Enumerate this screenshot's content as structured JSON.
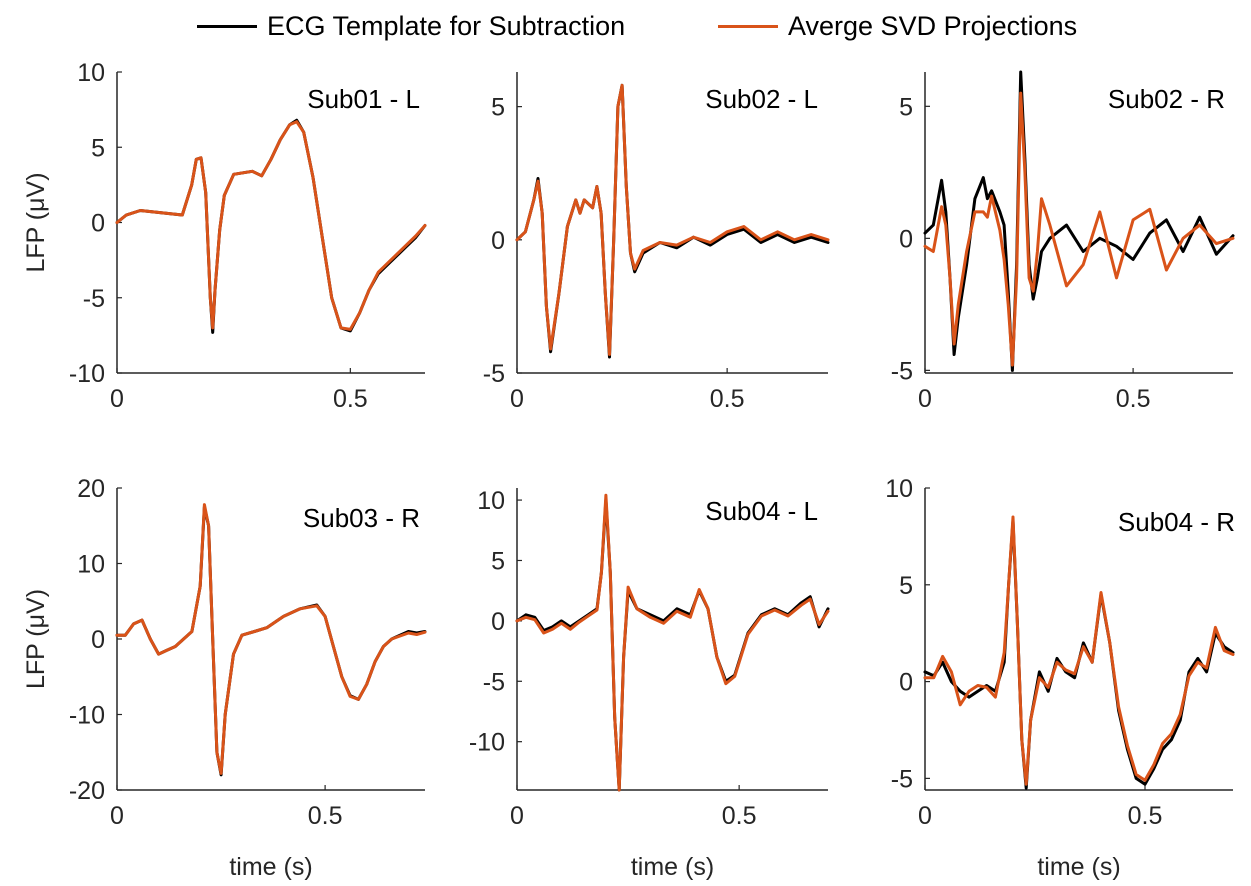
{
  "legend": {
    "items": [
      {
        "label": "ECG Template for Subtraction",
        "color": "#000000"
      },
      {
        "label": "Averge SVD Projections",
        "color": "#d95319"
      }
    ]
  },
  "chart_data": [
    {
      "type": "line",
      "title": "Sub01 - L",
      "xlabel": "",
      "ylabel": "LFP (μV)",
      "xlim": [
        0,
        0.66
      ],
      "ylim": [
        -10,
        10
      ],
      "xticks": [
        0,
        0.5
      ],
      "yticks": [
        -10,
        -5,
        0,
        5,
        10
      ],
      "series": [
        {
          "name": "ECG Template for Subtraction",
          "color": "#000000",
          "x": [
            0,
            0.02,
            0.05,
            0.08,
            0.11,
            0.14,
            0.16,
            0.17,
            0.18,
            0.19,
            0.2,
            0.205,
            0.21,
            0.22,
            0.23,
            0.25,
            0.27,
            0.29,
            0.31,
            0.33,
            0.35,
            0.37,
            0.385,
            0.4,
            0.42,
            0.44,
            0.46,
            0.48,
            0.5,
            0.52,
            0.54,
            0.56,
            0.58,
            0.6,
            0.62,
            0.64,
            0.66
          ],
          "y": [
            0,
            0.5,
            0.8,
            0.7,
            0.6,
            0.5,
            2.5,
            4.2,
            4.3,
            2,
            -5,
            -7.3,
            -4.5,
            -0.5,
            1.8,
            3.2,
            3.3,
            3.4,
            3.1,
            4.2,
            5.5,
            6.5,
            6.8,
            6,
            3,
            -1,
            -5,
            -7,
            -7.2,
            -6,
            -4.5,
            -3.4,
            -2.8,
            -2.2,
            -1.6,
            -1,
            -0.2
          ]
        },
        {
          "name": "Averge SVD Projections",
          "color": "#d95319",
          "x": [
            0,
            0.02,
            0.05,
            0.08,
            0.11,
            0.14,
            0.16,
            0.17,
            0.18,
            0.19,
            0.2,
            0.205,
            0.21,
            0.22,
            0.23,
            0.25,
            0.27,
            0.29,
            0.31,
            0.33,
            0.35,
            0.37,
            0.385,
            0.4,
            0.42,
            0.44,
            0.46,
            0.48,
            0.5,
            0.52,
            0.54,
            0.56,
            0.58,
            0.6,
            0.62,
            0.64,
            0.66
          ],
          "y": [
            0,
            0.5,
            0.8,
            0.7,
            0.6,
            0.5,
            2.5,
            4.2,
            4.3,
            2,
            -5,
            -7,
            -4.5,
            -0.5,
            1.8,
            3.2,
            3.3,
            3.4,
            3.1,
            4.2,
            5.5,
            6.5,
            6.7,
            6,
            3,
            -1,
            -5,
            -7,
            -7.1,
            -6,
            -4.5,
            -3.3,
            -2.7,
            -2.1,
            -1.5,
            -0.9,
            -0.2
          ]
        }
      ]
    },
    {
      "type": "line",
      "title": "Sub02 - L",
      "xlabel": "",
      "ylabel": "",
      "xlim": [
        0,
        0.74
      ],
      "ylim": [
        -5,
        6.3
      ],
      "xticks": [
        0,
        0.5
      ],
      "yticks": [
        -5,
        0,
        5
      ],
      "series": [
        {
          "name": "ECG Template for Subtraction",
          "color": "#000000",
          "x": [
            0,
            0.02,
            0.04,
            0.05,
            0.06,
            0.07,
            0.08,
            0.1,
            0.12,
            0.14,
            0.15,
            0.16,
            0.18,
            0.19,
            0.2,
            0.21,
            0.22,
            0.23,
            0.24,
            0.25,
            0.26,
            0.27,
            0.28,
            0.3,
            0.34,
            0.38,
            0.42,
            0.46,
            0.5,
            0.54,
            0.58,
            0.62,
            0.66,
            0.7,
            0.74
          ],
          "y": [
            0,
            0.3,
            1.5,
            2.3,
            1,
            -2.5,
            -4.2,
            -2,
            0.5,
            1.5,
            1,
            1.5,
            1.2,
            2,
            1,
            -2,
            -4.4,
            0,
            5,
            5.8,
            2,
            -0.5,
            -1.2,
            -0.5,
            -0.1,
            -0.3,
            0.1,
            -0.2,
            0.2,
            0.4,
            -0.1,
            0.2,
            -0.1,
            0.1,
            -0.1
          ]
        },
        {
          "name": "Averge SVD Projections",
          "color": "#d95319",
          "x": [
            0,
            0.02,
            0.04,
            0.05,
            0.06,
            0.07,
            0.08,
            0.1,
            0.12,
            0.14,
            0.15,
            0.16,
            0.18,
            0.19,
            0.2,
            0.21,
            0.22,
            0.23,
            0.24,
            0.25,
            0.26,
            0.27,
            0.28,
            0.3,
            0.34,
            0.38,
            0.42,
            0.46,
            0.5,
            0.54,
            0.58,
            0.62,
            0.66,
            0.7,
            0.74
          ],
          "y": [
            0,
            0.3,
            1.5,
            2.2,
            1,
            -2.5,
            -4.1,
            -2,
            0.5,
            1.5,
            1,
            1.5,
            1.2,
            2,
            1,
            -2,
            -4.3,
            0,
            5,
            5.8,
            2,
            -0.5,
            -1.1,
            -0.4,
            -0.1,
            -0.2,
            0.1,
            -0.1,
            0.3,
            0.5,
            0,
            0.3,
            0,
            0.2,
            0
          ]
        }
      ]
    },
    {
      "type": "line",
      "title": "Sub02 - R",
      "xlabel": "",
      "ylabel": "",
      "xlim": [
        0,
        0.74
      ],
      "ylim": [
        -5.1,
        6.3
      ],
      "xticks": [
        0,
        0.5
      ],
      "yticks": [
        -5,
        0,
        5
      ],
      "series": [
        {
          "name": "ECG Template for Subtraction",
          "color": "#000000",
          "x": [
            0,
            0.02,
            0.04,
            0.05,
            0.06,
            0.07,
            0.08,
            0.1,
            0.12,
            0.14,
            0.15,
            0.16,
            0.18,
            0.19,
            0.2,
            0.21,
            0.22,
            0.23,
            0.24,
            0.25,
            0.26,
            0.27,
            0.28,
            0.3,
            0.34,
            0.38,
            0.42,
            0.46,
            0.5,
            0.54,
            0.58,
            0.62,
            0.66,
            0.7,
            0.74
          ],
          "y": [
            0.2,
            0.5,
            2.2,
            1,
            -1.5,
            -4.4,
            -3,
            -1,
            1.5,
            2.3,
            1.5,
            1.8,
            1,
            0.5,
            -2,
            -5,
            -1,
            6.3,
            3,
            -1,
            -2.3,
            -1.5,
            -0.5,
            0,
            0.5,
            -0.5,
            0,
            -0.3,
            -0.8,
            0.2,
            0.7,
            -0.5,
            0.8,
            -0.6,
            0.1
          ]
        },
        {
          "name": "Averge SVD Projections",
          "color": "#d95319",
          "x": [
            0,
            0.02,
            0.04,
            0.05,
            0.06,
            0.07,
            0.08,
            0.1,
            0.12,
            0.14,
            0.15,
            0.16,
            0.18,
            0.19,
            0.2,
            0.21,
            0.22,
            0.23,
            0.24,
            0.25,
            0.26,
            0.27,
            0.28,
            0.3,
            0.34,
            0.38,
            0.42,
            0.46,
            0.5,
            0.54,
            0.58,
            0.62,
            0.66,
            0.7,
            0.74
          ],
          "y": [
            -0.3,
            -0.5,
            1.2,
            0.5,
            -1.5,
            -4,
            -2.5,
            -0.5,
            1,
            1,
            0.8,
            1.6,
            0.3,
            -0.8,
            -2.5,
            -4.8,
            -1.5,
            5.5,
            2.5,
            -1.5,
            -2,
            -0.5,
            1.5,
            0.5,
            -1.8,
            -1,
            1,
            -1.5,
            0.7,
            1.1,
            -1.2,
            0,
            0.5,
            -0.2,
            0
          ]
        }
      ]
    },
    {
      "type": "line",
      "title": "Sub03 - R",
      "xlabel": "time (s)",
      "ylabel": "LFP (μV)",
      "xlim": [
        0,
        0.74
      ],
      "ylim": [
        -20,
        20
      ],
      "xticks": [
        0,
        0.5
      ],
      "yticks": [
        -20,
        -10,
        0,
        10,
        20
      ],
      "series": [
        {
          "name": "ECG Template for Subtraction",
          "color": "#000000",
          "x": [
            0,
            0.02,
            0.04,
            0.06,
            0.08,
            0.1,
            0.12,
            0.14,
            0.16,
            0.18,
            0.2,
            0.21,
            0.22,
            0.23,
            0.24,
            0.25,
            0.26,
            0.28,
            0.3,
            0.33,
            0.36,
            0.4,
            0.44,
            0.48,
            0.5,
            0.52,
            0.54,
            0.56,
            0.58,
            0.6,
            0.62,
            0.64,
            0.66,
            0.68,
            0.7,
            0.72,
            0.74
          ],
          "y": [
            0.5,
            0.5,
            2,
            2.5,
            0,
            -2,
            -1.5,
            -1,
            0,
            1,
            7,
            17.5,
            15,
            0,
            -15,
            -18,
            -10,
            -2,
            0.5,
            1,
            1.5,
            3,
            4,
            4.5,
            3,
            -1,
            -5,
            -7.5,
            -8,
            -6,
            -3,
            -1,
            0,
            0.5,
            1,
            0.8,
            1
          ]
        },
        {
          "name": "Averge SVD Projections",
          "color": "#d95319",
          "x": [
            0,
            0.02,
            0.04,
            0.06,
            0.08,
            0.1,
            0.12,
            0.14,
            0.16,
            0.18,
            0.2,
            0.21,
            0.22,
            0.23,
            0.24,
            0.25,
            0.26,
            0.28,
            0.3,
            0.33,
            0.36,
            0.4,
            0.44,
            0.48,
            0.5,
            0.52,
            0.54,
            0.56,
            0.58,
            0.6,
            0.62,
            0.64,
            0.66,
            0.68,
            0.7,
            0.72,
            0.74
          ],
          "y": [
            0.5,
            0.5,
            2,
            2.5,
            0,
            -2,
            -1.5,
            -1,
            0,
            1,
            7,
            17.8,
            15,
            0,
            -15,
            -17.8,
            -10,
            -2,
            0.5,
            1,
            1.5,
            3,
            4,
            4.4,
            3,
            -1,
            -5,
            -7.6,
            -8,
            -6,
            -3,
            -1,
            0,
            0.4,
            0.8,
            0.6,
            0.9
          ]
        }
      ]
    },
    {
      "type": "line",
      "title": "Sub04 - L",
      "xlabel": "time (s)",
      "ylabel": "",
      "xlim": [
        0,
        0.7
      ],
      "ylim": [
        -14,
        11
      ],
      "xticks": [
        0,
        0.5
      ],
      "yticks": [
        -10,
        -5,
        0,
        5,
        10
      ],
      "series": [
        {
          "name": "ECG Template for Subtraction",
          "color": "#000000",
          "x": [
            0,
            0.02,
            0.04,
            0.06,
            0.08,
            0.1,
            0.12,
            0.14,
            0.16,
            0.18,
            0.19,
            0.2,
            0.21,
            0.22,
            0.23,
            0.24,
            0.25,
            0.27,
            0.3,
            0.33,
            0.36,
            0.39,
            0.41,
            0.43,
            0.45,
            0.47,
            0.49,
            0.52,
            0.55,
            0.58,
            0.61,
            0.64,
            0.66,
            0.68,
            0.7
          ],
          "y": [
            0,
            0.5,
            0.3,
            -0.8,
            -0.5,
            0,
            -0.5,
            0,
            0.5,
            1,
            4,
            10,
            4,
            -8,
            -14,
            -3,
            2.5,
            1,
            0.5,
            0,
            1,
            0.5,
            2.5,
            1,
            -3,
            -5,
            -4.5,
            -1,
            0.5,
            1,
            0.5,
            1.5,
            2,
            -0.5,
            1
          ]
        },
        {
          "name": "Averge SVD Projections",
          "color": "#d95319",
          "x": [
            0,
            0.02,
            0.04,
            0.06,
            0.08,
            0.1,
            0.12,
            0.14,
            0.16,
            0.18,
            0.19,
            0.2,
            0.21,
            0.22,
            0.23,
            0.24,
            0.25,
            0.27,
            0.3,
            0.33,
            0.36,
            0.39,
            0.41,
            0.43,
            0.45,
            0.47,
            0.49,
            0.52,
            0.55,
            0.58,
            0.61,
            0.64,
            0.66,
            0.68,
            0.7
          ],
          "y": [
            0,
            0.3,
            0.1,
            -1,
            -0.7,
            -0.2,
            -0.7,
            -0.1,
            0.4,
            0.9,
            4,
            10.4,
            4,
            -8,
            -14,
            -3,
            2.8,
            1,
            0.3,
            -0.2,
            0.8,
            0.3,
            2.6,
            1,
            -3,
            -5.2,
            -4.6,
            -1.1,
            0.4,
            0.9,
            0.4,
            1.3,
            1.8,
            -0.3,
            0.8
          ]
        }
      ]
    },
    {
      "type": "line",
      "title": "Sub04 - R",
      "xlabel": "time (s)",
      "ylabel": "",
      "xlim": [
        0,
        0.7
      ],
      "ylim": [
        -5.6,
        10
      ],
      "xticks": [
        0,
        0.5
      ],
      "yticks": [
        -5,
        0,
        5,
        10
      ],
      "series": [
        {
          "name": "ECG Template for Subtraction",
          "color": "#000000",
          "x": [
            0,
            0.02,
            0.04,
            0.06,
            0.08,
            0.1,
            0.12,
            0.14,
            0.16,
            0.18,
            0.19,
            0.2,
            0.21,
            0.22,
            0.23,
            0.24,
            0.26,
            0.28,
            0.3,
            0.32,
            0.34,
            0.36,
            0.38,
            0.4,
            0.42,
            0.44,
            0.46,
            0.48,
            0.5,
            0.52,
            0.54,
            0.56,
            0.58,
            0.6,
            0.62,
            0.64,
            0.66,
            0.68,
            0.7
          ],
          "y": [
            0.5,
            0.3,
            1,
            0,
            -0.5,
            -0.8,
            -0.5,
            -0.2,
            -0.5,
            1,
            5,
            8.3,
            3,
            -3,
            -5.5,
            -2,
            0.5,
            -0.5,
            1.2,
            0.5,
            0.2,
            2,
            1,
            4.5,
            2,
            -1.5,
            -3.5,
            -5,
            -5.3,
            -4.5,
            -3.5,
            -3,
            -2,
            0.5,
            1.2,
            0.5,
            2.5,
            1.8,
            1.5
          ]
        },
        {
          "name": "Averge SVD Projections",
          "color": "#d95319",
          "x": [
            0,
            0.02,
            0.04,
            0.06,
            0.08,
            0.1,
            0.12,
            0.14,
            0.16,
            0.18,
            0.19,
            0.2,
            0.21,
            0.22,
            0.23,
            0.24,
            0.26,
            0.28,
            0.3,
            0.32,
            0.34,
            0.36,
            0.38,
            0.4,
            0.42,
            0.44,
            0.46,
            0.48,
            0.5,
            0.52,
            0.54,
            0.56,
            0.58,
            0.6,
            0.62,
            0.64,
            0.66,
            0.68,
            0.7
          ],
          "y": [
            0.2,
            0.2,
            1.3,
            0.5,
            -1.2,
            -0.5,
            -0.2,
            -0.3,
            -0.8,
            1.5,
            5,
            8.5,
            3,
            -3,
            -5.3,
            -2,
            0.2,
            -0.3,
            1,
            0.6,
            0.4,
            1.8,
            1,
            4.6,
            2,
            -1.3,
            -3.3,
            -4.8,
            -5.1,
            -4.3,
            -3.2,
            -2.7,
            -1.7,
            0.3,
            1,
            0.7,
            2.8,
            1.6,
            1.4
          ]
        }
      ]
    }
  ]
}
